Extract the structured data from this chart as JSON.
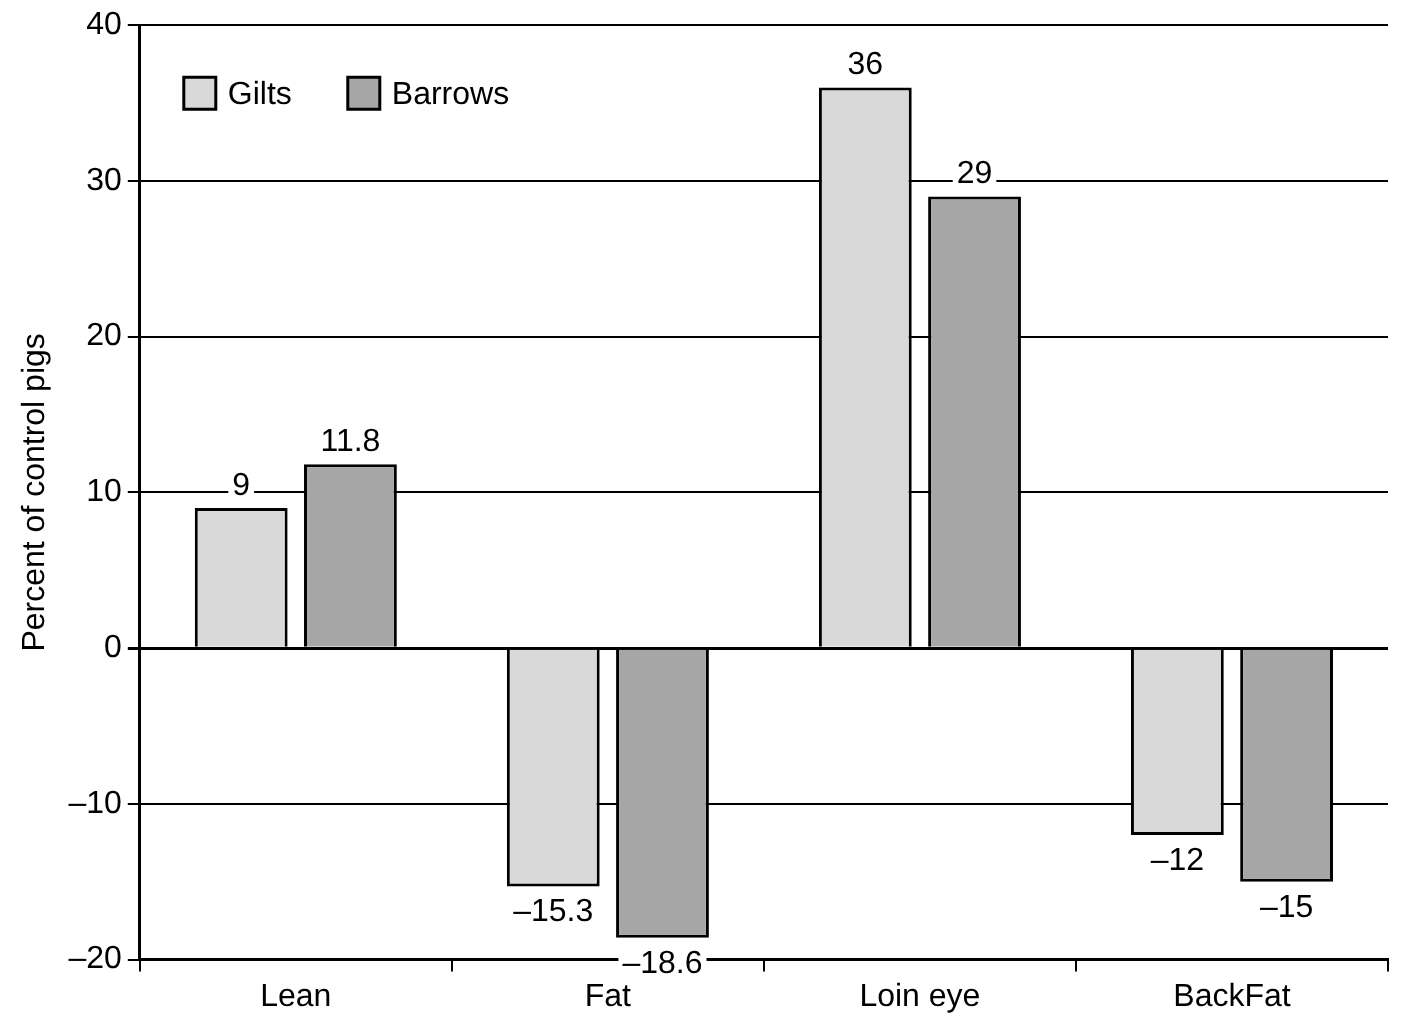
{
  "chart_data": {
    "type": "bar",
    "ylabel": "Percent of control pigs",
    "categories": [
      "Lean",
      "Fat",
      "Loin eye",
      "BackFat"
    ],
    "series": [
      {
        "name": "Gilts",
        "color": "#d9d9d9",
        "values": [
          9,
          -15.3,
          36,
          -12
        ],
        "value_labels": [
          "9",
          "–15.3",
          "36",
          "–12"
        ]
      },
      {
        "name": "Barrows",
        "color": "#a6a6a6",
        "values": [
          11.8,
          -18.6,
          29,
          -15
        ],
        "value_labels": [
          "11.8",
          "–18.6",
          "29",
          "–15"
        ]
      }
    ],
    "ylim": [
      -20,
      40
    ],
    "yticks": [
      {
        "value": -20,
        "label": "–20"
      },
      {
        "value": -10,
        "label": "–10"
      },
      0,
      10,
      20,
      30,
      40
    ],
    "grid": "y",
    "legend": "top left"
  }
}
